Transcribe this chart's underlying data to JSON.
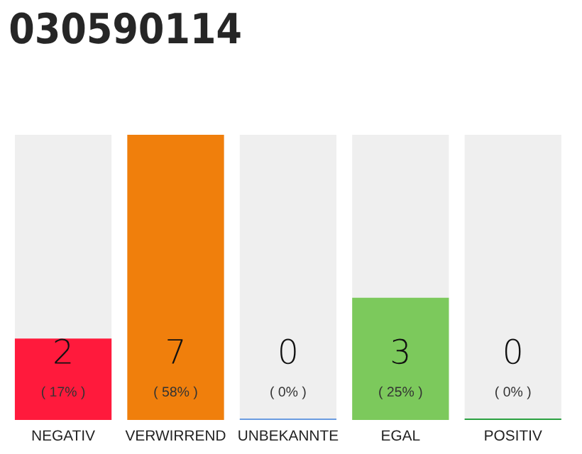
{
  "chart_data": {
    "type": "bar",
    "title": "030590114",
    "categories": [
      "NEGATIV",
      "VERWIRREND",
      "UNBEKANNTE",
      "EGAL",
      "POSITIV"
    ],
    "values": [
      2,
      7,
      0,
      3,
      0
    ],
    "colors": [
      "#ff1a3c",
      "#f07f0c",
      "#6a9be0",
      "#7cc95c",
      "#2aa040"
    ],
    "value_labels": [
      "2\n( 17% )",
      "7\n( 58% )",
      "0\n( 0% )",
      "3\n( 25% )",
      "0\n( 0% )"
    ],
    "tick_labels": "x"
  }
}
